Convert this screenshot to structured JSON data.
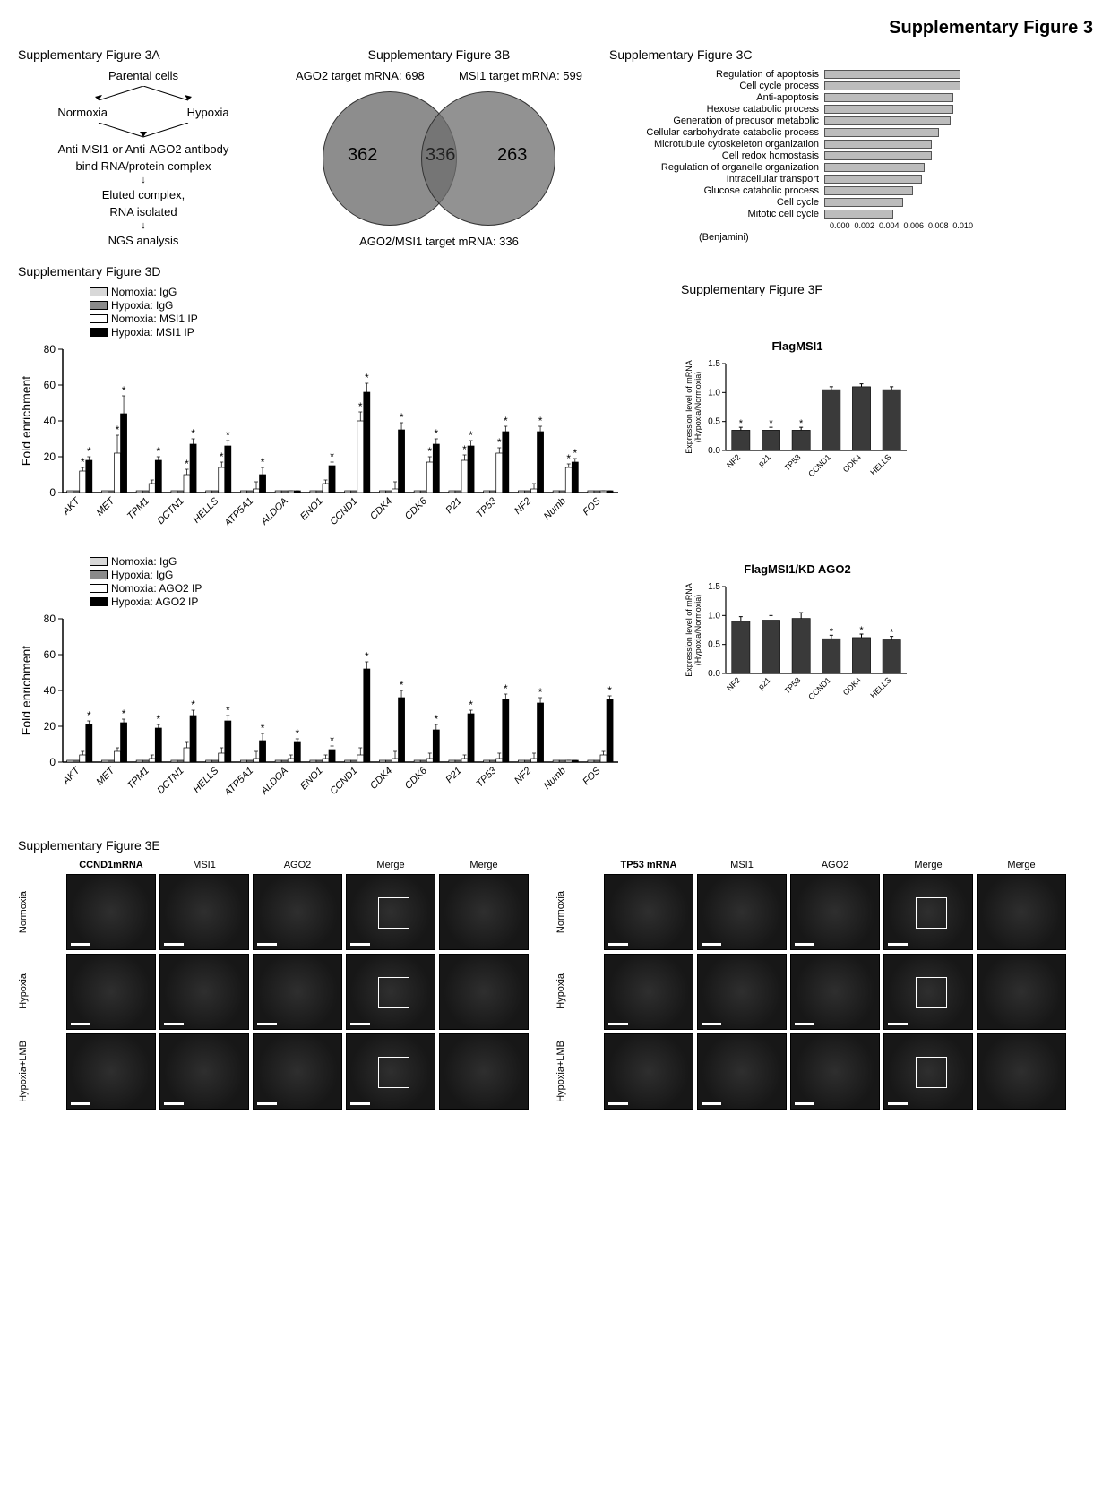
{
  "main_title": "Supplementary Figure 3",
  "panelA": {
    "title": "Supplementary Figure 3A",
    "nodes": [
      "Parental cells",
      "Normoxia",
      "Hypoxia",
      "Anti-MSI1 or Anti-AGO2 antibody",
      "bind RNA/protein complex",
      "Eluted complex,",
      "RNA isolated",
      "NGS analysis"
    ]
  },
  "panelB": {
    "title": "Supplementary Figure 3B",
    "left_label": "AGO2 target mRNA: 698",
    "right_label": "MSI1 target mRNA: 599",
    "only_left": "362",
    "intersect": "336",
    "only_right": "263",
    "bottom_label": "AGO2/MSI1 target mRNA: 336",
    "colors": {
      "left": "#6a6a6a",
      "right": "#7a7a7a"
    }
  },
  "panelC": {
    "title": "Supplementary Figure 3C",
    "items": [
      {
        "label": "Regulation of apoptosis",
        "val": 0.0095
      },
      {
        "label": "Cell cycle process",
        "val": 0.0095
      },
      {
        "label": "Anti-apoptosis",
        "val": 0.009
      },
      {
        "label": "Hexose catabolic process",
        "val": 0.009
      },
      {
        "label": "Generation of precusor metabolic",
        "val": 0.0088
      },
      {
        "label": "Cellular carbohydrate catabolic process",
        "val": 0.008
      },
      {
        "label": "Microtubule cytoskeleton organization",
        "val": 0.0075
      },
      {
        "label": "Cell redox homostasis",
        "val": 0.0075
      },
      {
        "label": "Regulation of organelle organization",
        "val": 0.007
      },
      {
        "label": "Intracellular transport",
        "val": 0.0068
      },
      {
        "label": "Glucose catabolic process",
        "val": 0.0062
      },
      {
        "label": "Cell cycle",
        "val": 0.0055
      },
      {
        "label": "Mitotic cell cycle",
        "val": 0.0048
      }
    ],
    "xmax": 0.01,
    "xticks": [
      "0.000",
      "0.002",
      "0.004",
      "0.006",
      "0.008",
      "0.010"
    ],
    "xlabel": "(Benjamini)",
    "bar_color": "#bcbcbc"
  },
  "panelD": {
    "title": "Supplementary Figure 3D",
    "genes": [
      "AKT",
      "MET",
      "TPM1",
      "DCTN1",
      "HELLS",
      "ATP5A1",
      "ALDOA",
      "ENO1",
      "CCND1",
      "CDK4",
      "CDK6",
      "P21",
      "TP53",
      "NF2",
      "Numb",
      "FOS"
    ],
    "ylabel": "Fold enrichment",
    "ymax": 80,
    "yticks": [
      0,
      20,
      40,
      60,
      80
    ],
    "legend1": [
      "Nomoxia: IgG",
      "Hypoxia: IgG",
      "Nomoxia: MSI1 IP",
      "Hypoxia: MSI1 IP"
    ],
    "legend2": [
      "Nomoxia: IgG",
      "Hypoxia: IgG",
      "Nomoxia: AGO2 IP",
      "Hypoxia: AGO2 IP"
    ],
    "colors": [
      "#d8d8d8",
      "#8a8a8a",
      "#ffffff",
      "#000000"
    ],
    "chart1": {
      "norm_igg": [
        1,
        1,
        1,
        1,
        1,
        1,
        1,
        1,
        1,
        1,
        1,
        1,
        1,
        1,
        1,
        1
      ],
      "hyp_igg": [
        1,
        1,
        1,
        1,
        1,
        1,
        1,
        1,
        1,
        1,
        1,
        1,
        1,
        1,
        1,
        1
      ],
      "norm_ip": [
        12,
        22,
        5,
        10,
        14,
        2,
        1,
        5,
        40,
        2,
        17,
        18,
        22,
        2,
        14,
        1
      ],
      "hyp_ip": [
        18,
        44,
        18,
        27,
        26,
        10,
        1,
        15,
        56,
        35,
        27,
        26,
        34,
        34,
        17,
        1
      ],
      "err": [
        2,
        10,
        2,
        3,
        3,
        4,
        0,
        2,
        5,
        4,
        3,
        3,
        3,
        3,
        2,
        0
      ],
      "star_norm": [
        1,
        1,
        0,
        1,
        1,
        0,
        0,
        0,
        1,
        0,
        1,
        1,
        1,
        0,
        1,
        0
      ],
      "star_hyp": [
        1,
        1,
        1,
        1,
        1,
        1,
        0,
        1,
        1,
        1,
        1,
        1,
        1,
        1,
        1,
        0
      ]
    },
    "chart2": {
      "norm_igg": [
        1,
        1,
        1,
        1,
        1,
        1,
        1,
        1,
        1,
        1,
        1,
        1,
        1,
        1,
        1,
        1
      ],
      "hyp_igg": [
        1,
        1,
        1,
        1,
        1,
        1,
        1,
        1,
        1,
        1,
        1,
        1,
        1,
        1,
        1,
        1
      ],
      "norm_ip": [
        4,
        6,
        2,
        8,
        5,
        2,
        2,
        2,
        4,
        2,
        2,
        2,
        2,
        2,
        1,
        4
      ],
      "hyp_ip": [
        21,
        22,
        19,
        26,
        23,
        12,
        11,
        7,
        52,
        36,
        18,
        27,
        35,
        33,
        1,
        35
      ],
      "err": [
        2,
        2,
        2,
        3,
        3,
        4,
        2,
        2,
        4,
        4,
        3,
        2,
        3,
        3,
        0,
        2
      ],
      "star_norm": [
        0,
        0,
        0,
        0,
        0,
        0,
        0,
        0,
        0,
        0,
        0,
        0,
        0,
        0,
        0,
        0
      ],
      "star_hyp": [
        1,
        1,
        1,
        1,
        1,
        1,
        1,
        1,
        1,
        1,
        1,
        1,
        1,
        1,
        0,
        1
      ]
    }
  },
  "panelF": {
    "title": "Supplementary Figure 3F",
    "genes": [
      "NF2",
      "p21",
      "TP53",
      "CCND1",
      "CDK4",
      "HELLS"
    ],
    "ylabel": "Expression level of mRNA\n(Hypoxia/Normoxia)",
    "chart1": {
      "title": "FlagMSI1",
      "ymax": 1.5,
      "yticks": [
        0.0,
        0.5,
        1.0,
        1.5
      ],
      "values": [
        0.35,
        0.35,
        0.35,
        1.05,
        1.1,
        1.05
      ],
      "err": [
        0.05,
        0.05,
        0.05,
        0.05,
        0.05,
        0.05
      ],
      "star": [
        1,
        1,
        1,
        0,
        0,
        0
      ]
    },
    "chart2": {
      "title": "FlagMSI1/KD AGO2",
      "ymax": 1.5,
      "yticks": [
        0.0,
        0.5,
        1.0,
        1.5
      ],
      "values": [
        0.9,
        0.92,
        0.95,
        0.6,
        0.62,
        0.58
      ],
      "err": [
        0.08,
        0.08,
        0.1,
        0.06,
        0.06,
        0.06
      ],
      "star": [
        0,
        0,
        0,
        1,
        1,
        1
      ]
    },
    "bar_color": "#3a3a3a"
  },
  "panelE": {
    "title": "Supplementary Figure 3E",
    "blocks": [
      {
        "mrna": "CCND1mRNA",
        "cols": [
          "MSI1",
          "AGO2",
          "Merge",
          "Merge"
        ],
        "rows": [
          "Normoxia",
          "Hypoxia",
          "Hypoxia+LMB"
        ]
      },
      {
        "mrna": "TP53 mRNA",
        "cols": [
          "MSI1",
          "AGO2",
          "Merge",
          "Merge"
        ],
        "rows": [
          "Normoxia",
          "Hypoxia",
          "Hypoxia+LMB"
        ]
      }
    ]
  }
}
